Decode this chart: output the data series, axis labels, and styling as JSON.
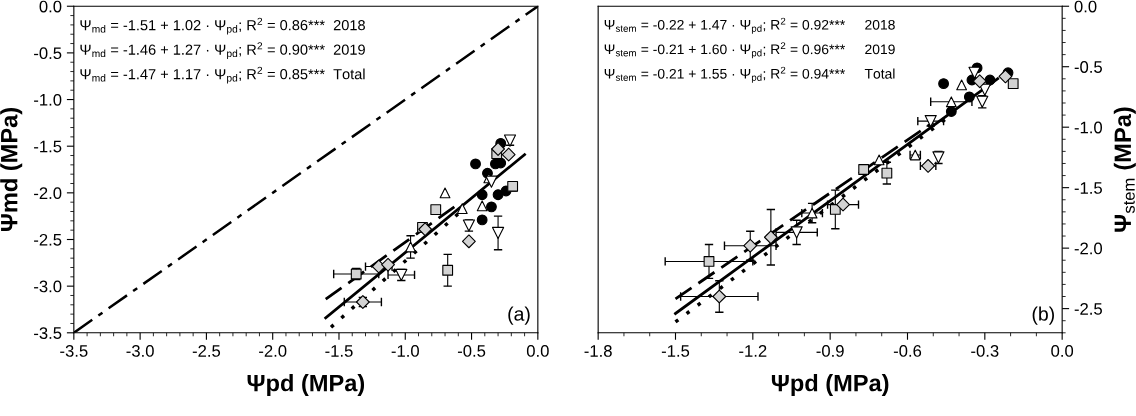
{
  "chart_data": [
    {
      "type": "scatter",
      "xlabel": "Ψpd (MPa)",
      "ylabel": "Ψmd (MPa)",
      "xlim": [
        -3.5,
        0
      ],
      "ylim": [
        -3.5,
        0
      ],
      "xticks": [
        {
          "value": -3.5,
          "label": "-3.5"
        },
        {
          "value": -3.0,
          "label": "-3.0"
        },
        {
          "value": -2.5,
          "label": "-2.5"
        },
        {
          "value": -2.0,
          "label": "-2.0"
        },
        {
          "value": -1.5,
          "label": "-1.5"
        },
        {
          "value": -1.0,
          "label": "-1.0"
        },
        {
          "value": -0.5,
          "label": "-0.5"
        },
        {
          "value": 0,
          "label": "0.0"
        }
      ],
      "yticks": [
        {
          "value": -3.5,
          "label": "-3.5"
        },
        {
          "value": -3.0,
          "label": "-3.0"
        },
        {
          "value": -2.5,
          "label": "-2.5"
        },
        {
          "value": -2.0,
          "label": "-2.0"
        },
        {
          "value": -1.5,
          "label": "-1.5"
        },
        {
          "value": -1.0,
          "label": "-1.0"
        },
        {
          "value": -0.5,
          "label": "-0.5"
        },
        {
          "value": 0,
          "label": "0.0"
        }
      ],
      "grid": false,
      "legend": false,
      "series": [
        {
          "type": "line",
          "line_style": "dashdot",
          "color": "#000000",
          "x": [
            -3.5,
            0
          ],
          "values": [
            -3.5,
            0
          ]
        },
        {
          "type": "line",
          "line_style": "dashed",
          "color": "#000000",
          "x": [
            -1.6,
            -0.6
          ],
          "values": [
            -3.14,
            -2.12
          ]
        },
        {
          "type": "line",
          "line_style": "dotted",
          "color": "#000000",
          "x": [
            -1.56,
            -0.55
          ],
          "values": [
            -3.44,
            -2.16
          ]
        },
        {
          "type": "line",
          "line_style": "solid",
          "color": "#000000",
          "x": [
            -1.6,
            -0.1
          ],
          "values": [
            -3.34,
            -1.59
          ]
        },
        {
          "type": "scatter",
          "marker": "circle",
          "color": "#000000",
          "x": [
            -0.32,
            -0.47,
            -0.38,
            -0.28,
            -0.42,
            -0.35,
            -0.3,
            -0.24,
            -0.42,
            -0.28
          ],
          "values": [
            -1.69,
            -1.69,
            -1.79,
            -1.68,
            -2.02,
            -2.15,
            -2.02,
            -1.98,
            -2.29,
            -1.47
          ]
        },
        {
          "type": "scatter",
          "marker": "triangle",
          "color": "#ffffff",
          "x": [
            -0.7,
            -0.57,
            -0.42,
            -0.96,
            -0.37
          ],
          "values": [
            -2.0,
            -2.17,
            -2.14,
            -2.58,
            -1.84
          ],
          "errors": [
            null,
            null,
            null,
            0.12,
            null
          ]
        },
        {
          "type": "scatter",
          "marker": "triangle_down",
          "color": "#ffffff",
          "x": [
            -0.21,
            -0.52,
            -0.3,
            -1.03,
            -0.35
          ],
          "values": [
            -1.44,
            -2.35,
            -2.43,
            -2.88,
            -1.88
          ],
          "errors": [
            0.05,
            0.06,
            0.18,
            0.06,
            null
          ],
          "xerrors": [
            null,
            null,
            null,
            0.1,
            null
          ]
        },
        {
          "type": "scatter",
          "marker": "square",
          "color": "#d3d3d3",
          "x": [
            -0.77,
            -0.87,
            -0.68,
            -1.37,
            -0.19,
            -0.31
          ],
          "values": [
            -2.18,
            -2.37,
            -2.83,
            -2.87,
            -1.93,
            -1.58
          ],
          "errors": [
            null,
            0.05,
            0.17,
            0.06,
            0.05,
            null
          ],
          "xerrors": [
            null,
            null,
            null,
            0.17,
            null,
            null
          ]
        },
        {
          "type": "scatter",
          "marker": "diamond",
          "color": "#d3d3d3",
          "x": [
            -0.3,
            -0.22,
            -0.52,
            -1.32,
            -1.2,
            -0.85,
            -1.13
          ],
          "values": [
            -1.53,
            -1.59,
            -2.52,
            -3.17,
            -2.79,
            -2.39,
            -2.77
          ],
          "errors": [
            null,
            null,
            null,
            0.05,
            null,
            null,
            null
          ],
          "xerrors": [
            null,
            null,
            null,
            0.14,
            0.1,
            null,
            null
          ]
        }
      ],
      "annotations": [
        "Ψ$_{md}$ = -1.51 + 1.02 · Ψ$_{pd}$; R$^{2}$ = 0.86***  2018",
        "Ψ$_{md}$ = -1.46 + 1.27 · Ψ$_{pd}$; R$^{2}$ = 0.90***  2019",
        "Ψ$_{md}$ = -1.47 + 1.17 · Ψ$_{pd}$; R$^{2}$ = 0.85***  Total",
        "(a)"
      ]
    },
    {
      "type": "scatter",
      "xlabel": "Ψpd (MPa)",
      "y2label": "Ψ$_{stem}$ (MPa)",
      "xlim": [
        -1.8,
        0
      ],
      "y2lim": [
        -2.7,
        0
      ],
      "xticks": [
        {
          "value": -1.8,
          "label": "-1.8"
        },
        {
          "value": -1.5,
          "label": "-1.5"
        },
        {
          "value": -1.2,
          "label": "-1.2"
        },
        {
          "value": -0.9,
          "label": "-0.9"
        },
        {
          "value": -0.6,
          "label": "-0.6"
        },
        {
          "value": -0.3,
          "label": "-0.3"
        },
        {
          "value": 0,
          "label": "0.0"
        }
      ],
      "y2ticks": [
        {
          "value": -2.5,
          "label": "-2.5"
        },
        {
          "value": -2.0,
          "label": "-2.0"
        },
        {
          "value": -1.5,
          "label": "-1.5"
        },
        {
          "value": -1.0,
          "label": "-1.0"
        },
        {
          "value": -0.5,
          "label": "-0.5"
        },
        {
          "value": 0,
          "label": "0.0"
        }
      ],
      "grid": false,
      "legend": false,
      "series": [
        {
          "type": "line",
          "axis": "y2",
          "line_style": "dashed",
          "color": "#000000",
          "x": [
            -1.5,
            -0.5
          ],
          "values": [
            -2.42,
            -0.96
          ]
        },
        {
          "type": "line",
          "axis": "y2",
          "line_style": "dotted",
          "color": "#000000",
          "x": [
            -1.5,
            -0.45
          ],
          "values": [
            -2.61,
            -0.93
          ]
        },
        {
          "type": "line",
          "axis": "y2",
          "line_style": "solid",
          "color": "#000000",
          "x": [
            -1.5,
            -0.25
          ],
          "values": [
            -2.54,
            -0.6
          ]
        },
        {
          "type": "scatter",
          "axis": "y2",
          "marker": "circle",
          "color": "#000000",
          "x": [
            -0.46,
            -0.33,
            -0.43,
            -0.36,
            -0.28,
            -0.21,
            -0.35
          ],
          "values": [
            -0.64,
            -0.51,
            -0.87,
            -0.75,
            -0.61,
            -0.55,
            -0.61
          ]
        },
        {
          "type": "scatter",
          "axis": "y2",
          "marker": "triangle",
          "color": "#ffffff",
          "x": [
            -0.39,
            -0.57,
            -0.71,
            -0.43,
            -0.97
          ],
          "values": [
            -0.65,
            -1.23,
            -1.27,
            -0.79,
            -1.71
          ],
          "errors": [
            null,
            null,
            null,
            null,
            0.08
          ],
          "xerrors": [
            null,
            0.02,
            null,
            0.08,
            0.04
          ]
        },
        {
          "type": "scatter",
          "axis": "y2",
          "marker": "triangle_down",
          "color": "#ffffff",
          "x": [
            -0.34,
            -0.31,
            -0.48,
            -0.51,
            -1.03,
            -0.3
          ],
          "values": [
            -0.55,
            -0.79,
            -1.25,
            -0.95,
            -1.87,
            -0.69
          ],
          "errors": [
            null,
            0.05,
            0.05,
            0.04,
            0.1,
            null
          ],
          "xerrors": [
            null,
            null,
            null,
            0.05,
            0.08,
            null
          ]
        },
        {
          "type": "scatter",
          "axis": "y2",
          "marker": "square",
          "color": "#d3d3d3",
          "x": [
            -0.19,
            -0.77,
            -0.68,
            -0.88,
            -1.37
          ],
          "values": [
            -0.64,
            -1.35,
            -1.38,
            -1.68,
            -2.11
          ],
          "errors": [
            null,
            null,
            0.09,
            0.16,
            0.14
          ],
          "xerrors": [
            null,
            null,
            null,
            null,
            0.17
          ]
        },
        {
          "type": "scatter",
          "axis": "y2",
          "marker": "diamond",
          "color": "#d3d3d3",
          "x": [
            -0.22,
            -0.32,
            -0.52,
            -0.85,
            -1.21,
            -1.13,
            -1.33
          ],
          "values": [
            -0.58,
            -0.62,
            -1.32,
            -1.64,
            -1.98,
            -1.91,
            -2.4
          ],
          "errors": [
            null,
            null,
            null,
            null,
            0.12,
            0.23,
            0.13
          ],
          "xerrors": [
            null,
            null,
            0.03,
            0.06,
            0.1,
            null,
            0.15
          ]
        }
      ],
      "annotations": [
        "Ψ$_{stem}$ = -0.22 + 1.47 · Ψ$_{pd}$; R$^{2}$ = 0.92***     2018",
        "Ψ$_{stem}$ = -0.21 + 1.60 · Ψ$_{pd}$; R$^{2}$ = 0.96***     2019",
        "Ψ$_{stem}$ = -0.21 + 1.55 · Ψ$_{pd}$; R$^{2}$ = 0.94***     Total",
        "(b)"
      ]
    }
  ]
}
